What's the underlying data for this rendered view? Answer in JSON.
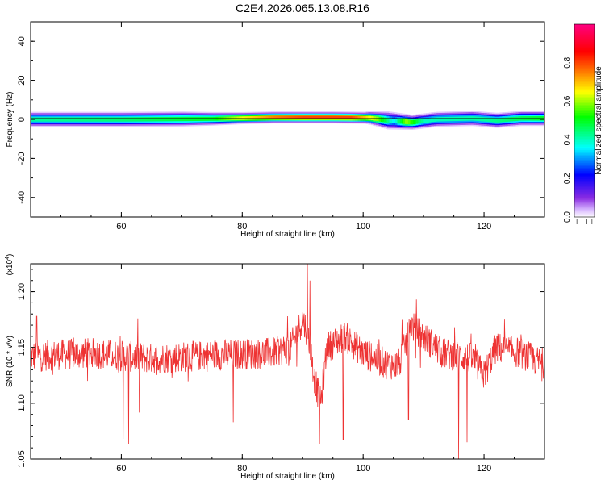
{
  "title": "C2E4.2026.065.13.08.R16",
  "colors": {
    "signal": "#ee3333",
    "axis": "#000000",
    "colorbar_stops": [
      "#ffffff",
      "#d8b8ff",
      "#8a2be2",
      "#0000ff",
      "#00ffff",
      "#00ff00",
      "#ffff00",
      "#ff8000",
      "#ff0000",
      "#ff0080"
    ]
  },
  "chart_data": [
    {
      "type": "heatmap",
      "xlabel": "Height of straight line (km)",
      "ylabel": "Frequency (Hz)",
      "xlim": [
        45,
        130
      ],
      "ylim": [
        -50,
        50
      ],
      "x_ticks": [
        60,
        80,
        100,
        120
      ],
      "y_ticks": [
        -40,
        -20,
        0,
        20,
        40
      ],
      "band_center_hz": [
        {
          "x": 45,
          "y": 0.0
        },
        {
          "x": 60,
          "y": 0.0
        },
        {
          "x": 75,
          "y": 0.3
        },
        {
          "x": 85,
          "y": 1.0
        },
        {
          "x": 95,
          "y": 1.0
        },
        {
          "x": 101,
          "y": 0.8
        },
        {
          "x": 104,
          "y": -0.5
        },
        {
          "x": 108,
          "y": -1.5
        },
        {
          "x": 112,
          "y": 0.0
        },
        {
          "x": 118,
          "y": 0.5
        },
        {
          "x": 122,
          "y": -0.5
        },
        {
          "x": 126,
          "y": 0.5
        },
        {
          "x": 130,
          "y": 0.5
        }
      ],
      "band_half_width_hz": [
        {
          "x": 45,
          "y": 2.5
        },
        {
          "x": 70,
          "y": 2.5
        },
        {
          "x": 80,
          "y": 2.0
        },
        {
          "x": 100,
          "y": 2.0
        },
        {
          "x": 104,
          "y": 3.0
        },
        {
          "x": 108,
          "y": 2.5
        },
        {
          "x": 130,
          "y": 2.5
        }
      ],
      "band_peak_amplitude": [
        {
          "x": 45,
          "y": 0.42
        },
        {
          "x": 60,
          "y": 0.45
        },
        {
          "x": 75,
          "y": 0.5
        },
        {
          "x": 80,
          "y": 0.65
        },
        {
          "x": 85,
          "y": 0.75
        },
        {
          "x": 90,
          "y": 0.8
        },
        {
          "x": 98,
          "y": 0.8
        },
        {
          "x": 102,
          "y": 0.6
        },
        {
          "x": 105,
          "y": 0.35
        },
        {
          "x": 107,
          "y": 0.6
        },
        {
          "x": 110,
          "y": 0.4
        },
        {
          "x": 120,
          "y": 0.42
        },
        {
          "x": 130,
          "y": 0.5
        }
      ],
      "colorbar": {
        "label": "Normalized spectral amplitude",
        "range": [
          0,
          1
        ],
        "ticks": [
          0.0,
          0.2,
          0.4,
          0.6,
          0.8
        ]
      }
    },
    {
      "type": "line",
      "xlabel": "Height of straight line (km)",
      "ylabel": "SNR (10 * v/v)",
      "y_multiplier": "(x10",
      "y_multiplier_exp": "4",
      "xlim": [
        45,
        130
      ],
      "ylim": [
        1.05,
        1.225
      ],
      "x_ticks": [
        60,
        80,
        100,
        120
      ],
      "y_ticks": [
        1.05,
        1.1,
        1.15,
        1.2
      ],
      "y_tick_labels": [
        "1.05",
        "1.10",
        "1.15",
        "1.20"
      ],
      "noise_amplitude": 0.014,
      "baseline": [
        {
          "x": 45,
          "y": 1.142
        },
        {
          "x": 55,
          "y": 1.145
        },
        {
          "x": 65,
          "y": 1.14
        },
        {
          "x": 75,
          "y": 1.143
        },
        {
          "x": 85,
          "y": 1.145
        },
        {
          "x": 88,
          "y": 1.15
        },
        {
          "x": 90,
          "y": 1.175
        },
        {
          "x": 91,
          "y": 1.16
        },
        {
          "x": 92,
          "y": 1.12
        },
        {
          "x": 93,
          "y": 1.1
        },
        {
          "x": 94,
          "y": 1.15
        },
        {
          "x": 97,
          "y": 1.16
        },
        {
          "x": 100,
          "y": 1.145
        },
        {
          "x": 104,
          "y": 1.135
        },
        {
          "x": 106,
          "y": 1.135
        },
        {
          "x": 108,
          "y": 1.17
        },
        {
          "x": 110,
          "y": 1.16
        },
        {
          "x": 113,
          "y": 1.145
        },
        {
          "x": 118,
          "y": 1.14
        },
        {
          "x": 120,
          "y": 1.125
        },
        {
          "x": 122,
          "y": 1.15
        },
        {
          "x": 126,
          "y": 1.145
        },
        {
          "x": 130,
          "y": 1.135
        }
      ],
      "spikes": [
        {
          "x": 46,
          "y": 1.178
        },
        {
          "x": 60.3,
          "y": 1.068
        },
        {
          "x": 61.2,
          "y": 1.063
        },
        {
          "x": 63,
          "y": 1.092
        },
        {
          "x": 78.5,
          "y": 1.083
        },
        {
          "x": 87.5,
          "y": 1.178
        },
        {
          "x": 90.8,
          "y": 1.225
        },
        {
          "x": 91.2,
          "y": 1.21
        },
        {
          "x": 92.8,
          "y": 1.063
        },
        {
          "x": 96.7,
          "y": 1.067
        },
        {
          "x": 107.5,
          "y": 1.085
        },
        {
          "x": 108.8,
          "y": 1.193
        },
        {
          "x": 115.8,
          "y": 1.05
        },
        {
          "x": 117.2,
          "y": 1.065
        }
      ]
    }
  ]
}
